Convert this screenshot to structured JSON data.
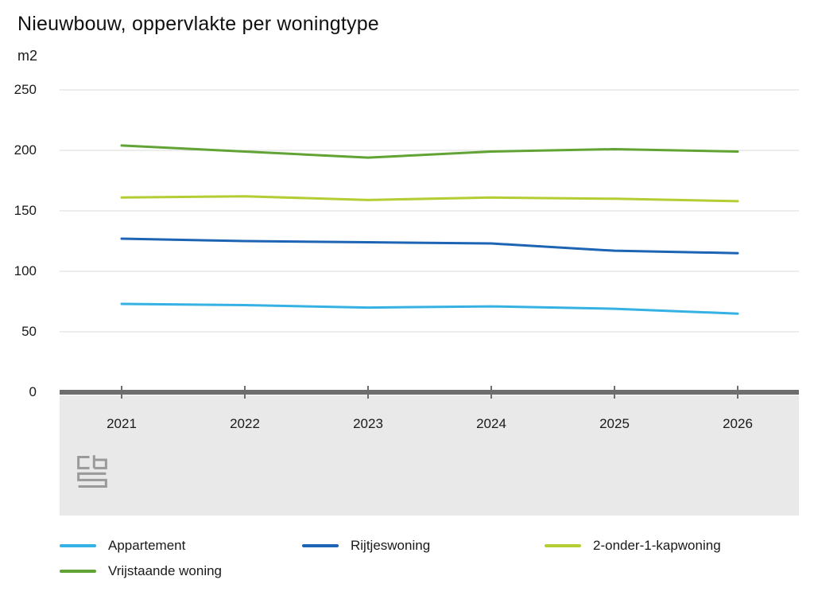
{
  "chart_data": {
    "type": "line",
    "title": "Nieuwbouw, oppervlakte per woningtype",
    "ylabel": "m2",
    "xlabel": "",
    "ylim": [
      0,
      250
    ],
    "yticks": [
      0,
      50,
      100,
      150,
      200,
      250
    ],
    "categories": [
      "2021",
      "2022",
      "2023",
      "2024",
      "2025",
      "2026"
    ],
    "series": [
      {
        "name": "Appartement",
        "color": "#35b1e3",
        "values": [
          73,
          72,
          70,
          71,
          69,
          65
        ]
      },
      {
        "name": "Rijtjeswoning",
        "color": "#1e64b4",
        "values": [
          127,
          125,
          124,
          123,
          117,
          115
        ]
      },
      {
        "name": "2-onder-1-kapwoning",
        "color": "#b3cd33",
        "values": [
          161,
          162,
          159,
          161,
          160,
          158
        ]
      },
      {
        "name": "Vrijstaande woning",
        "color": "#61a435",
        "values": [
          204,
          199,
          194,
          199,
          201,
          199
        ]
      }
    ],
    "legend_position": "bottom",
    "grid": true,
    "gridline_color": "#d9d9d9",
    "axis_color": "#6e6e6e",
    "band_color": "#e9e9e9"
  },
  "icons": {
    "brand_logo": "cbs-logo"
  }
}
